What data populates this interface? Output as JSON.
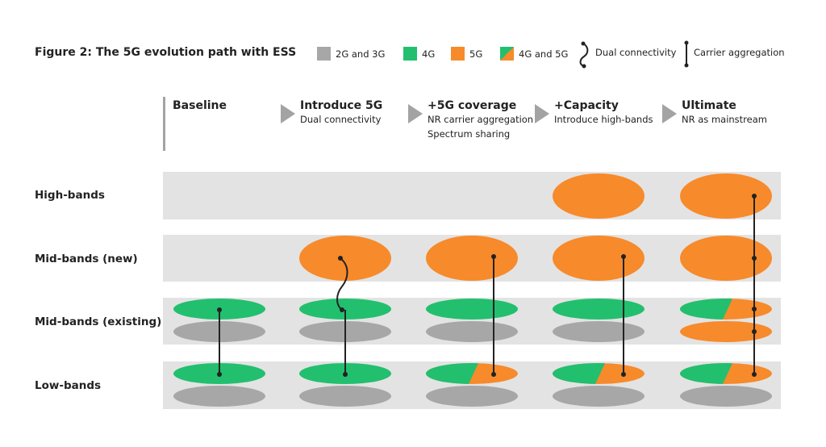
{
  "title": "Figure 2: The 5G evolution path with ESS",
  "colors": {
    "2g3g": "#a7a7a7",
    "4g": "#22bf6f",
    "5g": "#f78a2b",
    "band_bg": "#e3e3e3",
    "arrow": "#a3a3a3",
    "line": "#222222"
  },
  "legend": {
    "items": [
      {
        "key": "2g3g",
        "label": "2G and 3G"
      },
      {
        "key": "4g",
        "label": "4G"
      },
      {
        "key": "5g",
        "label": "5G"
      },
      {
        "key": "4g5g",
        "label": "4G and 5G"
      }
    ],
    "dual_connectivity": "Dual connectivity",
    "carrier_aggregation": "Carrier aggregation"
  },
  "rows": [
    "High-bands",
    "Mid-bands (new)",
    "Mid-bands (existing)",
    "Low-bands"
  ],
  "stages": [
    {
      "title": "Baseline",
      "lines": [],
      "high": null,
      "mid_new": null,
      "mid_existing": [
        "4g",
        "2g3g"
      ],
      "low": [
        "4g",
        "2g3g"
      ],
      "connector": "carrier-aggregation"
    },
    {
      "title": "Introduce 5G",
      "lines": [
        "Dual connectivity"
      ],
      "high": null,
      "mid_new": "5g",
      "mid_existing": [
        "4g",
        "2g3g"
      ],
      "low": [
        "4g",
        "2g3g"
      ],
      "connector": "dual-connectivity"
    },
    {
      "title": "+5G coverage",
      "lines": [
        "NR carrier aggregation",
        "Spectrum sharing"
      ],
      "high": null,
      "mid_new": "5g",
      "mid_existing": [
        "4g",
        "2g3g"
      ],
      "low": [
        "4g5g",
        "2g3g"
      ],
      "connector": "carrier-aggregation"
    },
    {
      "title": "+Capacity",
      "lines": [
        "Introduce high-bands"
      ],
      "high": "5g",
      "mid_new": "5g",
      "mid_existing": [
        "4g",
        "2g3g"
      ],
      "low": [
        "4g5g",
        "2g3g"
      ],
      "connector": "carrier-aggregation"
    },
    {
      "title": "Ultimate",
      "lines": [
        "NR as mainstream"
      ],
      "high": "5g",
      "mid_new": "5g",
      "mid_existing": [
        "4g5g",
        "5g"
      ],
      "low": [
        "4g5g",
        "2g3g"
      ],
      "connector": "carrier-aggregation"
    }
  ]
}
